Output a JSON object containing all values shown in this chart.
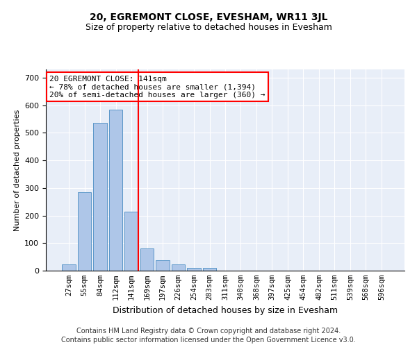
{
  "title": "20, EGREMONT CLOSE, EVESHAM, WR11 3JL",
  "subtitle": "Size of property relative to detached houses in Evesham",
  "xlabel": "Distribution of detached houses by size in Evesham",
  "ylabel": "Number of detached properties",
  "categories": [
    "27sqm",
    "55sqm",
    "84sqm",
    "112sqm",
    "141sqm",
    "169sqm",
    "197sqm",
    "226sqm",
    "254sqm",
    "283sqm",
    "311sqm",
    "340sqm",
    "368sqm",
    "397sqm",
    "425sqm",
    "454sqm",
    "482sqm",
    "511sqm",
    "539sqm",
    "568sqm",
    "596sqm"
  ],
  "values": [
    22,
    285,
    535,
    585,
    215,
    80,
    37,
    22,
    10,
    10,
    0,
    0,
    0,
    0,
    0,
    0,
    0,
    0,
    0,
    0,
    0
  ],
  "bar_color": "#aec6e8",
  "bar_edge_color": "#5a96c8",
  "vline_x_index": 4,
  "annotation_text": "20 EGREMONT CLOSE: 141sqm\n← 78% of detached houses are smaller (1,394)\n20% of semi-detached houses are larger (360) →",
  "annotation_box_color": "white",
  "annotation_box_edge_color": "red",
  "vline_color": "red",
  "ylim": [
    0,
    730
  ],
  "yticks": [
    0,
    100,
    200,
    300,
    400,
    500,
    600,
    700
  ],
  "footer_line1": "Contains HM Land Registry data © Crown copyright and database right 2024.",
  "footer_line2": "Contains public sector information licensed under the Open Government Licence v3.0.",
  "plot_bg_color": "#e8eef8",
  "title_fontsize": 10,
  "subtitle_fontsize": 9,
  "footer_fontsize": 7.0
}
